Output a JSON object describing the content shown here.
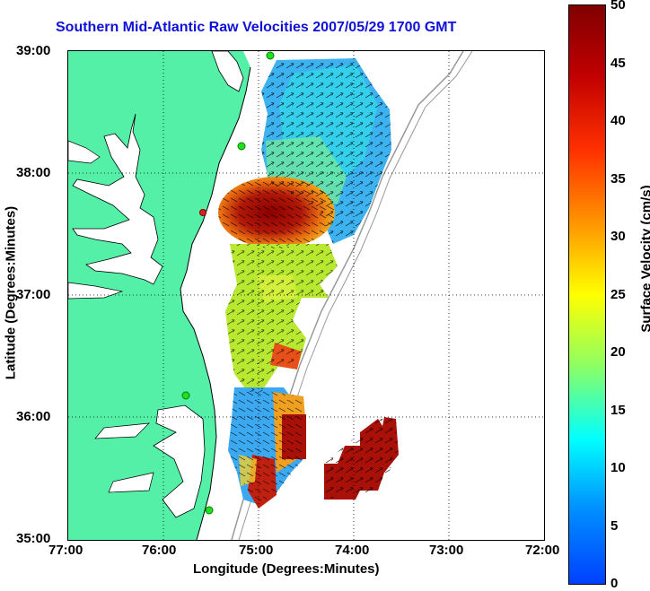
{
  "title": "Southern Mid-Atlantic Raw Velocities 2007/05/29 1700 GMT",
  "xlabel": "Longitude (Degrees:Minutes)",
  "ylabel": "Latitude (Degrees:Minutes)",
  "x_ticks": [
    "77:00",
    "76:00",
    "75:00",
    "74:00",
    "73:00",
    "72:00"
  ],
  "y_ticks": [
    "39:00",
    "38:00",
    "37:00",
    "36:00",
    "35:00"
  ],
  "colorbar": {
    "label": "Surface Velocity (cm/s)",
    "ticks": [
      "50",
      "45",
      "40",
      "35",
      "30",
      "25",
      "20",
      "15",
      "10",
      "5",
      "0"
    ],
    "range": [
      0,
      50
    ]
  },
  "colors": {
    "land": "#55f0a8",
    "title": "#1010d8",
    "coast_line": "#000000",
    "bathymetry": "#999999"
  }
}
